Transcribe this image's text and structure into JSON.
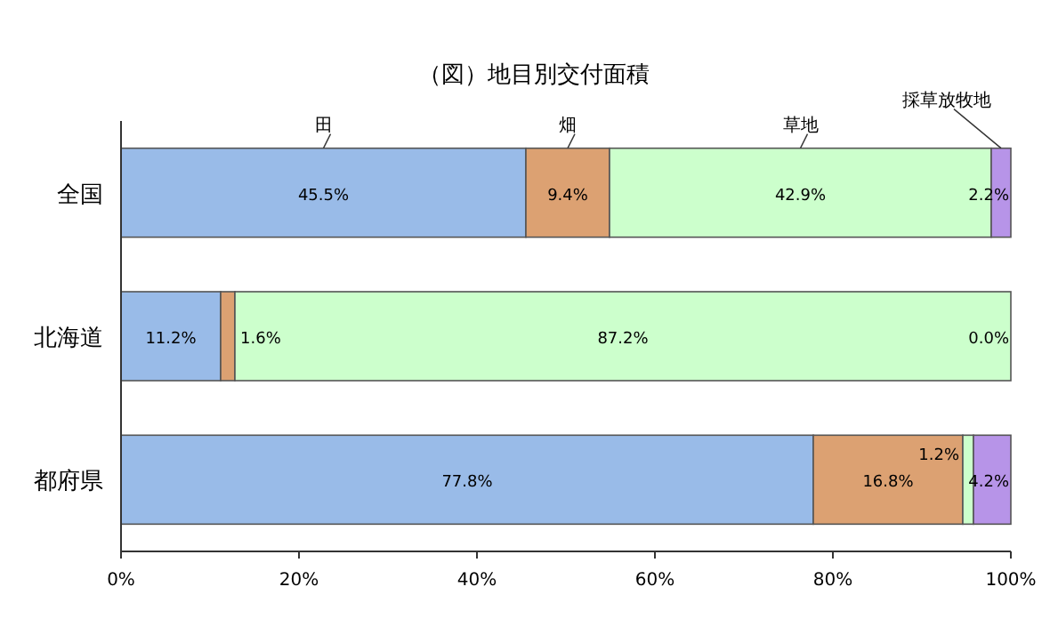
{
  "chart_data": {
    "type": "bar",
    "orientation": "horizontal",
    "stacked": true,
    "title": "（図）地目別交付面積",
    "categories": [
      "全国",
      "北海道",
      "都府県"
    ],
    "series": [
      {
        "name": "田",
        "color": "#99bbe8",
        "values": [
          45.5,
          11.2,
          77.8
        ],
        "value_labels": [
          "45.5%",
          "11.2%",
          "77.8%"
        ]
      },
      {
        "name": "畑",
        "color": "#dca172",
        "values": [
          9.4,
          1.6,
          16.8
        ],
        "value_labels": [
          "9.4%",
          "1.6%",
          "16.8%"
        ]
      },
      {
        "name": "草地",
        "color": "#ccffcc",
        "values": [
          42.9,
          87.2,
          1.2
        ],
        "value_labels": [
          "42.9%",
          "87.2%",
          "1.2%"
        ]
      },
      {
        "name": "採草放牧地",
        "color": "#b794e8",
        "values": [
          2.2,
          0.0,
          4.2
        ],
        "value_labels": [
          "2.2%",
          "0.0%",
          "4.2%"
        ]
      }
    ],
    "xlim": [
      0,
      100
    ],
    "xticks": [
      {
        "value": 0,
        "label": "0%"
      },
      {
        "value": 20,
        "label": "20%"
      },
      {
        "value": 40,
        "label": "40%"
      },
      {
        "value": 60,
        "label": "60%"
      },
      {
        "value": 80,
        "label": "80%"
      },
      {
        "value": 100,
        "label": "100%"
      }
    ],
    "grid": false
  }
}
